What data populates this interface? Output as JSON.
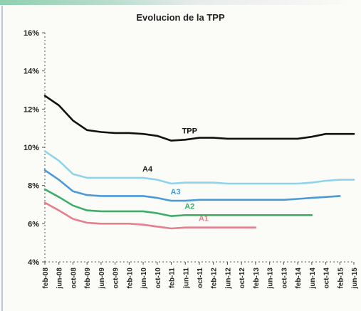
{
  "chart_data": {
    "type": "line",
    "title": "Evolucion de la TPP",
    "xlabel": "",
    "ylabel": "",
    "ylim": [
      4,
      16
    ],
    "yticks": [
      "4%",
      "6%",
      "8%",
      "10%",
      "12%",
      "14%",
      "16%"
    ],
    "ytick_values": [
      4,
      6,
      8,
      10,
      12,
      14,
      16
    ],
    "grid": false,
    "legend": "none",
    "x_ticks": [
      "feb-08",
      "jun-08",
      "oct-08",
      "feb-09",
      "jun-09",
      "oct-09",
      "feb-10",
      "jun-10",
      "oct-10",
      "feb-11",
      "jun-11",
      "oct-11",
      "feb-12",
      "jun-12",
      "oct-12",
      "feb-13",
      "jun-13",
      "oct-13",
      "feb-14",
      "jun-14",
      "oct-14",
      "feb-15",
      "jun-15"
    ],
    "series": [
      {
        "name": "TPP",
        "color": "#111111",
        "values": [
          12.7,
          12.2,
          11.4,
          10.9,
          10.8,
          10.75,
          10.75,
          10.7,
          10.6,
          10.35,
          10.4,
          10.5,
          10.5,
          10.45,
          10.45,
          10.45,
          10.45,
          10.45,
          10.45,
          10.55,
          10.7,
          10.7,
          10.7
        ]
      },
      {
        "name": "A4",
        "color": "#8fd4ec",
        "values": [
          9.8,
          9.3,
          8.6,
          8.4,
          8.4,
          8.4,
          8.4,
          8.4,
          8.3,
          8.1,
          8.15,
          8.15,
          8.15,
          8.1,
          8.1,
          8.1,
          8.1,
          8.1,
          8.1,
          8.15,
          8.25,
          8.3,
          8.3
        ]
      },
      {
        "name": "A3",
        "color": "#4a9ad8",
        "values": [
          8.8,
          8.3,
          7.7,
          7.5,
          7.45,
          7.45,
          7.45,
          7.45,
          7.35,
          7.2,
          7.2,
          7.25,
          7.25,
          7.25,
          7.25,
          7.25,
          7.25,
          7.25,
          7.3,
          7.35,
          7.4,
          7.45
        ]
      },
      {
        "name": "A2",
        "color": "#3cae6a",
        "values": [
          7.8,
          7.4,
          6.95,
          6.7,
          6.65,
          6.65,
          6.65,
          6.65,
          6.55,
          6.4,
          6.45,
          6.45,
          6.45,
          6.45,
          6.45,
          6.45,
          6.45,
          6.45,
          6.45,
          6.45
        ]
      },
      {
        "name": "A1",
        "color": "#e57f8e",
        "values": [
          7.1,
          6.7,
          6.25,
          6.05,
          6.0,
          6.0,
          6.0,
          5.95,
          5.85,
          5.75,
          5.8,
          5.8,
          5.8,
          5.8,
          5.8,
          5.8
        ]
      }
    ]
  }
}
